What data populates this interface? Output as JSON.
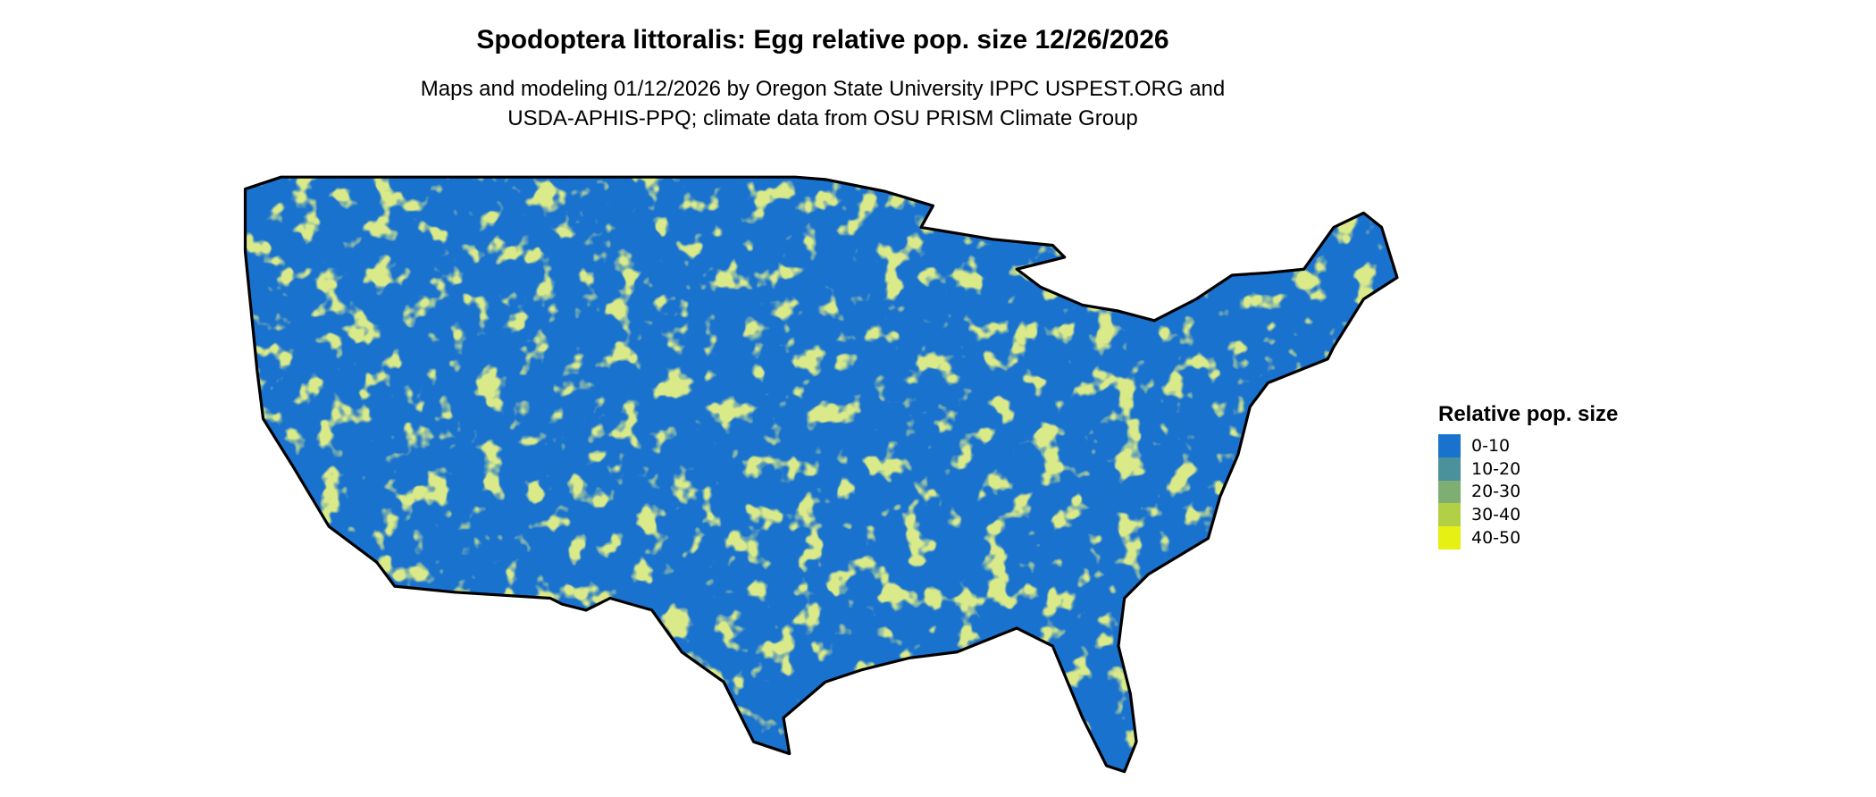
{
  "title": "Spodoptera littoralis: Egg relative pop. size 12/26/2026",
  "subtitle_line1": "Maps and modeling 01/12/2026 by Oregon State University IPPC USPEST.ORG and",
  "subtitle_line2": "USDA-APHIS-PPQ; climate data from OSU PRISM Climate Group",
  "legend": {
    "title": "Relative pop. size",
    "items": [
      {
        "label": "0-10",
        "color": "#1a72cf"
      },
      {
        "label": "10-20",
        "color": "#4a919b"
      },
      {
        "label": "20-30",
        "color": "#7fae72"
      },
      {
        "label": "30-40",
        "color": "#b2d045"
      },
      {
        "label": "40-50",
        "color": "#e6f012"
      }
    ]
  },
  "map": {
    "region": "contiguous United States",
    "base_color": "#1a72cf",
    "border_color": "#000000"
  }
}
